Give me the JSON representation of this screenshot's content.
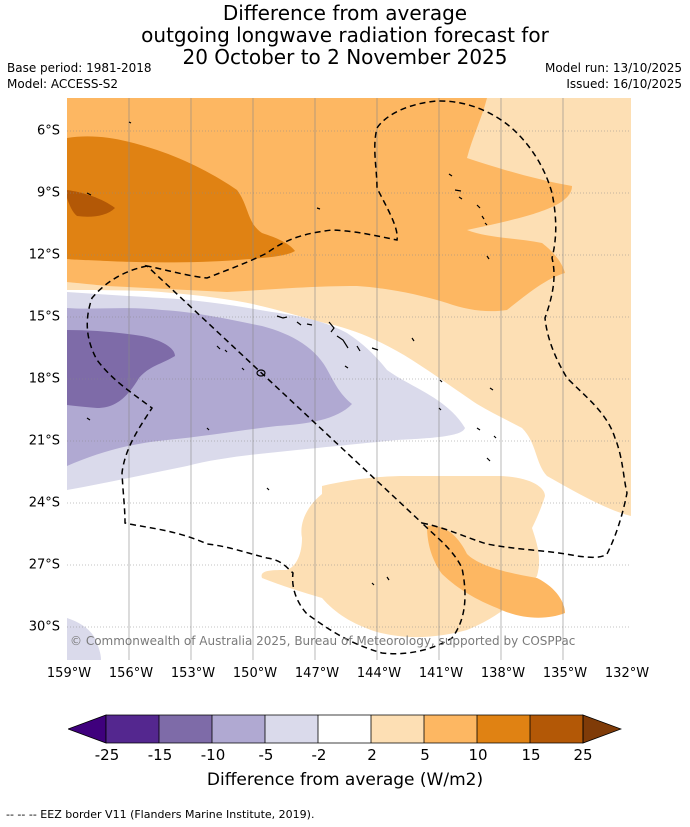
{
  "title": {
    "line1": "Difference from average",
    "line2": "outgoing longwave radiation forecast for",
    "line3": "20 October to 2 November 2025"
  },
  "meta": {
    "base_period": "Base period: 1981-2018",
    "model": "Model: ACCESS-S2",
    "model_run": "Model run: 13/10/2025",
    "issued": "Issued: 16/10/2025"
  },
  "map": {
    "y_ticks": [
      "6°S",
      "9°S",
      "12°S",
      "15°S",
      "18°S",
      "21°S",
      "24°S",
      "27°S",
      "30°S"
    ],
    "x_ticks": [
      "159°W",
      "156°W",
      "153°W",
      "150°W",
      "147°W",
      "144°W",
      "141°W",
      "138°W",
      "135°W",
      "132°W"
    ],
    "copyright": "© Commonwealth of Australia 2025, Bureau of Meteorology, supported by COSPPac"
  },
  "colorbar": {
    "labels": [
      "-25",
      "-15",
      "-10",
      "-5",
      "-2",
      "2",
      "5",
      "10",
      "15",
      "25"
    ],
    "colors": [
      "#3f007d",
      "#54278f",
      "#7e6ba8",
      "#b0a9d2",
      "#dadaeb",
      "#ffffff",
      "#fddfb4",
      "#fdb762",
      "#e08213",
      "#b35806",
      "#7f3b08"
    ],
    "title": "Difference from average (W/m2)"
  },
  "footer": "--  --  -- EEZ border V11 (Flanders Marine Institute, 2019)."
}
